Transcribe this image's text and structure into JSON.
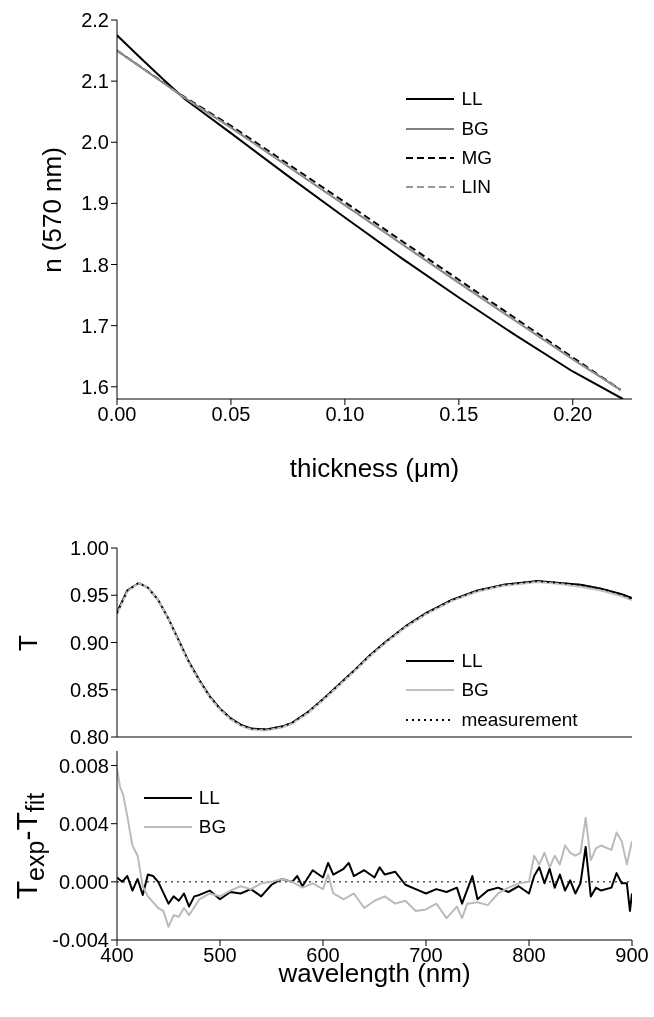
{
  "chart_data": [
    {
      "type": "line",
      "xlabel": "thickness (μm)",
      "ylabel": "n (570 nm)",
      "xlim": [
        0,
        0.226
      ],
      "xticks": [
        {
          "value": 0,
          "label": "0.00"
        },
        {
          "value": 0.05,
          "label": "0.05"
        },
        {
          "value": 0.1,
          "label": "0.10"
        },
        {
          "value": 0.15,
          "label": "0.15"
        },
        {
          "value": 0.2,
          "label": "0.20"
        }
      ],
      "ylim": [
        1.58,
        2.2
      ],
      "yticks": [
        1.6,
        1.7,
        1.8,
        1.9,
        {
          "value": 2,
          "label": "2.0"
        },
        2.1,
        2.2
      ],
      "legend": "top right",
      "grid": false,
      "marker": "none",
      "series": [
        {
          "name": "LL",
          "color": "#000000",
          "line_style": "solid",
          "x": [
            0,
            0.01,
            0.02,
            0.03,
            0.05,
            0.075,
            0.1,
            0.125,
            0.15,
            0.175,
            0.2,
            0.222
          ],
          "values": [
            2.175,
            2.139,
            2.104,
            2.07,
            2.015,
            1.945,
            1.877,
            1.81,
            1.746,
            1.684,
            1.625,
            1.58
          ]
        },
        {
          "name": "BG",
          "color": "#808080",
          "line_style": "solid",
          "x": [
            0,
            0.03,
            0.05,
            0.1,
            0.15,
            0.2,
            0.221
          ],
          "values": [
            2.15,
            2.072,
            2.024,
            1.897,
            1.77,
            1.645,
            1.595
          ]
        },
        {
          "name": "MG",
          "color": "#000000",
          "line_style": "dashed",
          "x": [
            0,
            0.03,
            0.05,
            0.1,
            0.15,
            0.2,
            0.221
          ],
          "values": [
            2.15,
            2.073,
            2.027,
            1.902,
            1.775,
            1.648,
            1.595
          ]
        },
        {
          "name": "LIN",
          "color": "#999999",
          "line_style": "dashed",
          "x": [
            0,
            0.03,
            0.05,
            0.1,
            0.15,
            0.2,
            0.221
          ],
          "values": [
            2.15,
            2.072,
            2.024,
            1.898,
            1.771,
            1.645,
            1.595
          ]
        }
      ]
    },
    {
      "type": "line",
      "ylabel": "T",
      "xlim": [
        400,
        900
      ],
      "xticks": [
        {
          "value": 400,
          "label": null
        },
        {
          "value": 500,
          "label": null
        },
        {
          "value": 600,
          "label": null
        },
        {
          "value": 700,
          "label": null
        },
        {
          "value": 800,
          "label": null
        },
        {
          "value": 900,
          "label": null
        }
      ],
      "ylim": [
        0.8,
        1.0
      ],
      "yticks": [
        {
          "value": 0.8,
          "label": "0.80"
        },
        {
          "value": 0.85,
          "label": "0.85"
        },
        {
          "value": 0.9,
          "label": "0.90"
        },
        {
          "value": 0.95,
          "label": "0.95"
        },
        {
          "value": 1.0,
          "label": "1.00"
        }
      ],
      "tick_labels": "y",
      "legend": "bottom right",
      "grid": false,
      "marker": "none",
      "series": [
        {
          "name": "LL",
          "color": "#000000",
          "line_style": "solid",
          "x": [
            400,
            410,
            421,
            430,
            440,
            450,
            460,
            470,
            480,
            490,
            500,
            510,
            520,
            530,
            545,
            560,
            570,
            585,
            600,
            615,
            630,
            645,
            660,
            680,
            700,
            725,
            750,
            775,
            800,
            808,
            830,
            850,
            870,
            890,
            900
          ],
          "values": [
            0.932,
            0.955,
            0.963,
            0.958,
            0.945,
            0.925,
            0.902,
            0.879,
            0.86,
            0.843,
            0.83,
            0.82,
            0.813,
            0.809,
            0.808,
            0.811,
            0.815,
            0.826,
            0.84,
            0.855,
            0.87,
            0.886,
            0.9,
            0.917,
            0.931,
            0.945,
            0.955,
            0.961,
            0.964,
            0.965,
            0.963,
            0.961,
            0.957,
            0.951,
            0.947
          ]
        },
        {
          "name": "BG",
          "color": "#c0c0c0",
          "line_style": "solid",
          "x": [
            400,
            410,
            421,
            430,
            440,
            450,
            460,
            470,
            480,
            490,
            500,
            510,
            520,
            530,
            545,
            560,
            570,
            585,
            600,
            615,
            630,
            645,
            660,
            680,
            700,
            725,
            750,
            775,
            800,
            808,
            830,
            850,
            870,
            890,
            900
          ],
          "values": [
            0.93,
            0.954,
            0.963,
            0.958,
            0.945,
            0.925,
            0.901,
            0.878,
            0.859,
            0.842,
            0.829,
            0.819,
            0.812,
            0.808,
            0.807,
            0.81,
            0.814,
            0.825,
            0.839,
            0.854,
            0.869,
            0.885,
            0.899,
            0.916,
            0.93,
            0.944,
            0.954,
            0.96,
            0.963,
            0.964,
            0.962,
            0.959,
            0.955,
            0.949,
            0.945
          ]
        },
        {
          "name": "measurement",
          "color": "#000000",
          "line_style": "dotted",
          "x": [
            400,
            410,
            421,
            430,
            440,
            450,
            460,
            470,
            480,
            490,
            500,
            510,
            520,
            530,
            545,
            560,
            570,
            585,
            600,
            615,
            630,
            645,
            660,
            680,
            700,
            725,
            750,
            775,
            800,
            808,
            830,
            850,
            870,
            890,
            900
          ],
          "values": [
            0.931,
            0.955,
            0.963,
            0.958,
            0.945,
            0.925,
            0.902,
            0.879,
            0.86,
            0.843,
            0.83,
            0.82,
            0.813,
            0.809,
            0.808,
            0.811,
            0.815,
            0.826,
            0.84,
            0.855,
            0.87,
            0.886,
            0.9,
            0.917,
            0.931,
            0.945,
            0.955,
            0.961,
            0.964,
            0.965,
            0.963,
            0.961,
            0.957,
            0.951,
            0.946
          ]
        }
      ]
    },
    {
      "type": "line",
      "xlabel": "wavelength (nm)",
      "ylabel": "T$_{exp}$-T$_{fit}$",
      "xlim": [
        400,
        900
      ],
      "xticks": [
        400,
        500,
        600,
        700,
        800,
        900
      ],
      "ylim": [
        -0.004,
        0.009
      ],
      "yticks": [
        {
          "value": -0.004,
          "label": "-0.004"
        },
        {
          "value": 0,
          "label": "0.000"
        },
        {
          "value": 0.004,
          "label": "0.004"
        },
        {
          "value": 0.008,
          "label": "0.008"
        }
      ],
      "legend": "top left",
      "grid": false,
      "marker": "none",
      "ref_lines": [
        {
          "axis": "y",
          "value": 0,
          "color": "#000000",
          "line_style": "dotted"
        }
      ],
      "series": [
        {
          "name": "LL",
          "color": "#000000",
          "line_style": "solid",
          "x": [
            400,
            405,
            410,
            415,
            420,
            425,
            430,
            435,
            440,
            450,
            455,
            460,
            465,
            470,
            475,
            480,
            490,
            500,
            510,
            520,
            530,
            540,
            550,
            560,
            570,
            575,
            580,
            590,
            600,
            605,
            610,
            620,
            625,
            630,
            640,
            650,
            655,
            660,
            670,
            680,
            690,
            700,
            710,
            720,
            730,
            735,
            745,
            750,
            760,
            770,
            780,
            790,
            800,
            805,
            810,
            815,
            820,
            825,
            830,
            835,
            840,
            845,
            850,
            855,
            860,
            865,
            870,
            880,
            885,
            890,
            895,
            898,
            900
          ],
          "values": [
            0.0003,
            0,
            0.0004,
            -0.0006,
            0.0002,
            -0.0009,
            0.0005,
            0.0004,
            0,
            -0.0015,
            -0.001,
            -0.0013,
            -0.0008,
            -0.0017,
            -0.001,
            -0.0009,
            -0.0006,
            -0.0012,
            -0.0007,
            -0.0008,
            -0.0005,
            -0.001,
            -0.0002,
            0.0002,
            0,
            0.0004,
            -0.0003,
            0.0008,
            0.0003,
            0.0013,
            0.0005,
            0.0009,
            0.0013,
            0.0004,
            0.0008,
            0.0003,
            0.001,
            0.0005,
            0.0007,
            -0.0002,
            -0.0005,
            -0.0008,
            -0.0005,
            -0.0007,
            -0.0004,
            -0.0015,
            0.0004,
            -0.0012,
            -0.0006,
            -0.0004,
            -0.0007,
            -0.0003,
            -0.0008,
            0.0004,
            0.001,
            -0.0001,
            0.0009,
            -0.0004,
            0.0005,
            -0.0006,
            0.0001,
            -0.0008,
            -0.0001,
            0.0024,
            -0.001,
            -0.0004,
            -0.0006,
            -0.0004,
            0.0006,
            -0.0001,
            -0.0001,
            -0.002,
            -0.0008
          ]
        },
        {
          "name": "BG",
          "color": "#bbbbbb",
          "line_style": "solid",
          "x": [
            400,
            403,
            406,
            410,
            415,
            420,
            425,
            430,
            440,
            445,
            450,
            455,
            460,
            465,
            470,
            480,
            490,
            500,
            510,
            520,
            530,
            540,
            550,
            560,
            570,
            580,
            590,
            600,
            605,
            610,
            620,
            630,
            640,
            650,
            660,
            670,
            680,
            690,
            700,
            710,
            720,
            730,
            735,
            740,
            750,
            760,
            770,
            780,
            790,
            800,
            805,
            810,
            815,
            820,
            825,
            830,
            835,
            840,
            845,
            850,
            855,
            860,
            865,
            870,
            880,
            885,
            890,
            895,
            900
          ],
          "values": [
            0.0078,
            0.0065,
            0.006,
            0.0045,
            0.0025,
            0.0018,
            -0.0003,
            -0.001,
            -0.0018,
            -0.002,
            -0.0031,
            -0.0023,
            -0.0024,
            -0.0018,
            -0.0023,
            -0.0012,
            -0.0008,
            -0.001,
            -0.0006,
            -0.0003,
            -0.0005,
            -0.0001,
            0,
            0.0002,
            0,
            -0.0004,
            -0.0001,
            -0.0005,
            0.0005,
            -0.0008,
            -0.0012,
            -0.0008,
            -0.0018,
            -0.0013,
            -0.001,
            -0.0015,
            -0.0013,
            -0.002,
            -0.0019,
            -0.0015,
            -0.0025,
            -0.0017,
            -0.0025,
            -0.0015,
            -0.0014,
            -0.0016,
            -0.0008,
            -0.0004,
            -0.0001,
            0,
            0.0018,
            0.0012,
            0.002,
            0.001,
            0.0018,
            0.0012,
            0.0025,
            0.002,
            0.0018,
            0.002,
            0.0044,
            0.0015,
            0.0023,
            0.0025,
            0.0022,
            0.0034,
            0.0028,
            0.0012,
            0.0028
          ]
        }
      ]
    }
  ]
}
